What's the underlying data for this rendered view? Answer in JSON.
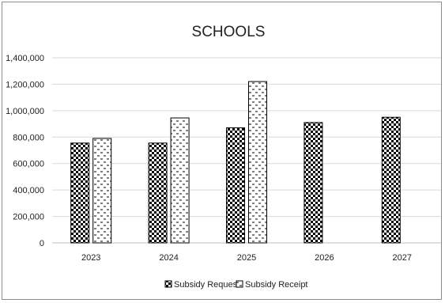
{
  "chart_data": {
    "type": "bar",
    "title": "SCHOOLS",
    "categories": [
      "2023",
      "2024",
      "2025",
      "2026",
      "2027"
    ],
    "ylim": [
      0,
      1400000
    ],
    "yticks": [
      0,
      200000,
      400000,
      600000,
      800000,
      1000000,
      1200000,
      1400000
    ],
    "ytick_labels": [
      "0",
      "200,000",
      "400,000",
      "600,000",
      "800,000",
      "1,000,000",
      "1,200,000",
      "1,400,000"
    ],
    "grid": true,
    "legend_position": "bottom",
    "series": [
      {
        "name": "Subsidy Request",
        "pattern": "checker",
        "values": [
          755000,
          755000,
          870000,
          910000,
          950000
        ]
      },
      {
        "name": "Subsidy Receipt",
        "pattern": "dashes",
        "values": [
          790000,
          945000,
          1220000,
          null,
          null
        ]
      }
    ],
    "colors": {
      "ink": "#000000",
      "grid": "#d9d9d9",
      "axis": "#bfbfbf"
    }
  }
}
